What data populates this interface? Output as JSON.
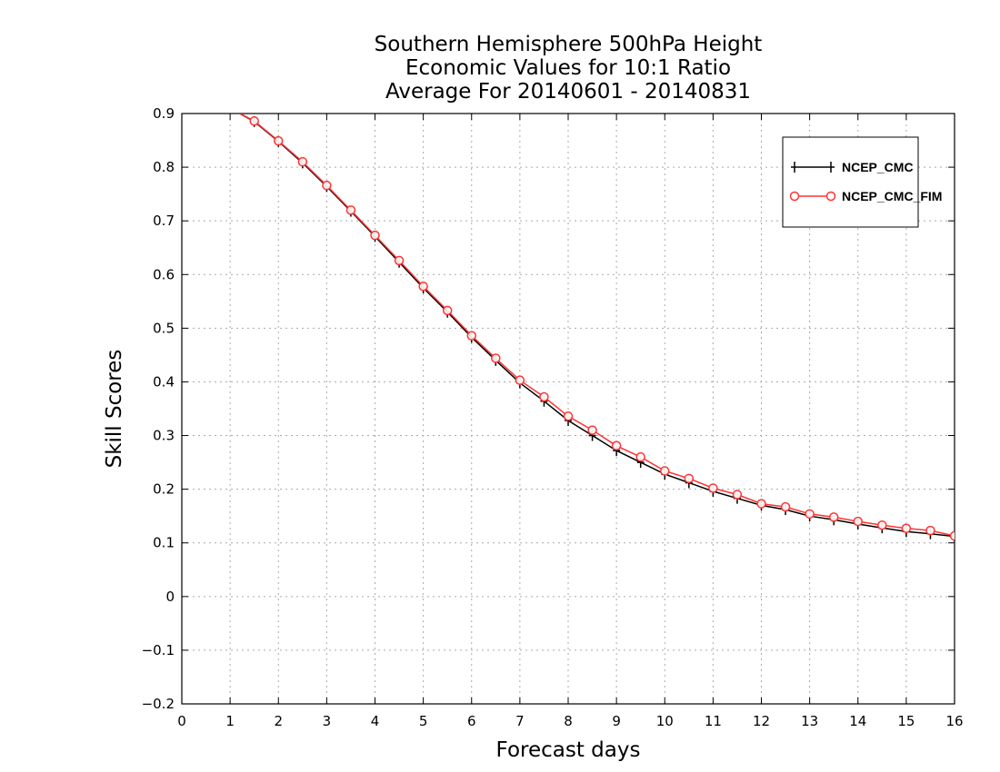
{
  "chart_data": {
    "type": "line",
    "title_lines": [
      "Southern Hemisphere 500hPa Height",
      "Economic Values for 10:1 Ratio",
      "Average For 20140601 - 20140831"
    ],
    "xlabel": "Forecast days",
    "ylabel": "Skill Scores",
    "xlim": [
      0,
      16
    ],
    "ylim": [
      -0.2,
      0.9
    ],
    "xticks": [
      "0",
      "1",
      "2",
      "3",
      "4",
      "5",
      "6",
      "7",
      "8",
      "9",
      "10",
      "11",
      "12",
      "13",
      "14",
      "15",
      "16"
    ],
    "yticks": [
      "−0.2",
      "−0.1",
      "0",
      "0.1",
      "0.2",
      "0.3",
      "0.4",
      "0.5",
      "0.6",
      "0.7",
      "0.8",
      "0.9"
    ],
    "grid": true,
    "legend_position": "top-right",
    "series": [
      {
        "name": "NCEP_CMC",
        "color": "#000000",
        "marker": "plus",
        "x": [
          1.0,
          1.5,
          2.0,
          2.5,
          3.0,
          3.5,
          4.0,
          4.5,
          5.0,
          5.5,
          6.0,
          6.5,
          7.0,
          7.5,
          8.0,
          8.5,
          9.0,
          9.5,
          10.0,
          10.5,
          11.0,
          11.5,
          12.0,
          12.5,
          13.0,
          13.5,
          14.0,
          14.5,
          15.0,
          15.5,
          16.0
        ],
        "values": [
          0.91,
          0.885,
          0.848,
          0.808,
          0.764,
          0.718,
          0.671,
          0.623,
          0.575,
          0.53,
          0.483,
          0.44,
          0.398,
          0.364,
          0.328,
          0.3,
          0.272,
          0.25,
          0.228,
          0.212,
          0.196,
          0.183,
          0.17,
          0.162,
          0.15,
          0.143,
          0.135,
          0.128,
          0.121,
          0.117,
          0.112
        ]
      },
      {
        "name": "NCEP_CMC_FIM",
        "color": "#ff3333",
        "marker": "circle",
        "x": [
          1.0,
          1.5,
          2.0,
          2.5,
          3.0,
          3.5,
          4.0,
          4.5,
          5.0,
          5.5,
          6.0,
          6.5,
          7.0,
          7.5,
          8.0,
          8.5,
          9.0,
          9.5,
          10.0,
          10.5,
          11.0,
          11.5,
          12.0,
          12.5,
          13.0,
          13.5,
          14.0,
          14.5,
          15.0,
          15.5,
          16.0
        ],
        "values": [
          0.91,
          0.886,
          0.849,
          0.81,
          0.766,
          0.72,
          0.673,
          0.626,
          0.578,
          0.533,
          0.486,
          0.444,
          0.403,
          0.372,
          0.336,
          0.31,
          0.281,
          0.26,
          0.234,
          0.22,
          0.202,
          0.19,
          0.173,
          0.167,
          0.154,
          0.148,
          0.14,
          0.133,
          0.127,
          0.123,
          0.113
        ]
      }
    ]
  }
}
